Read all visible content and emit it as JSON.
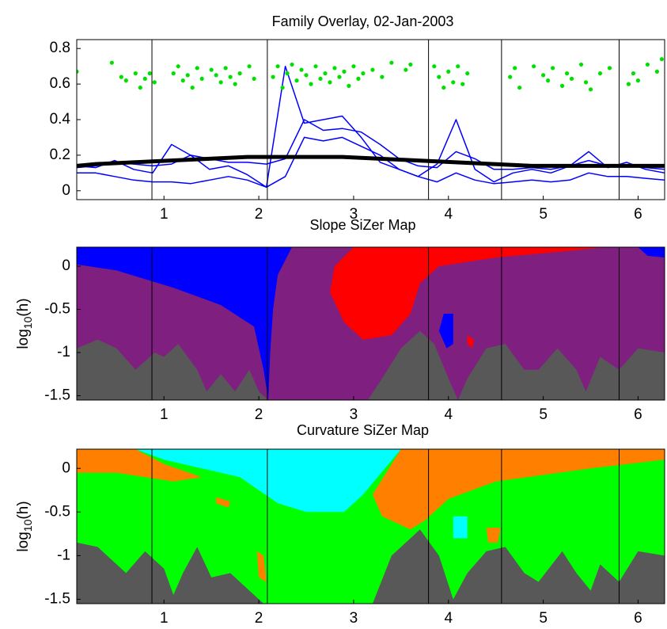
{
  "chart_data": [
    {
      "type": "line",
      "title": "Family Overlay, 02-Jan-2003",
      "xlim": [
        0.08,
        6.28
      ],
      "xticks": [
        1,
        2,
        3,
        4,
        5,
        6
      ],
      "ylim": [
        -0.05,
        0.85
      ],
      "yticks": [
        0,
        0.2,
        0.4,
        0.6,
        0.8
      ],
      "vlines": [
        0.873,
        2.09,
        3.79,
        4.56,
        5.8
      ],
      "x": [
        0.08,
        0.28,
        0.48,
        0.68,
        0.88,
        1.08,
        1.28,
        1.48,
        1.68,
        1.88,
        2.08,
        2.28,
        2.48,
        2.68,
        2.88,
        3.08,
        3.28,
        3.48,
        3.68,
        3.88,
        4.08,
        4.28,
        4.48,
        4.68,
        4.88,
        5.08,
        5.28,
        5.48,
        5.68,
        5.88,
        6.08,
        6.28
      ],
      "series": [
        {
          "color": "#0000ff",
          "values": [
            0.14,
            0.13,
            0.17,
            0.12,
            0.1,
            0.26,
            0.2,
            0.12,
            0.14,
            0.09,
            0.02,
            0.7,
            0.38,
            0.4,
            0.42,
            0.3,
            0.16,
            0.12,
            0.08,
            0.15,
            0.4,
            0.12,
            0.05,
            0.1,
            0.12,
            0.1,
            0.14,
            0.22,
            0.13,
            0.16,
            0.12,
            0.1
          ]
        },
        {
          "color": "#0000ff",
          "values": [
            0.13,
            0.14,
            0.16,
            0.15,
            0.14,
            0.15,
            0.2,
            0.18,
            0.16,
            0.16,
            0.15,
            0.18,
            0.4,
            0.34,
            0.35,
            0.33,
            0.26,
            0.18,
            0.14,
            0.13,
            0.22,
            0.18,
            0.12,
            0.12,
            0.13,
            0.12,
            0.14,
            0.17,
            0.14,
            0.14,
            0.13,
            0.12
          ]
        },
        {
          "color": "#0000ff",
          "values": [
            0.1,
            0.1,
            0.08,
            0.06,
            0.05,
            0.05,
            0.04,
            0.06,
            0.08,
            0.06,
            0.02,
            0.08,
            0.3,
            0.28,
            0.3,
            0.25,
            0.2,
            0.12,
            0.08,
            0.05,
            0.1,
            0.06,
            0.04,
            0.05,
            0.06,
            0.05,
            0.06,
            0.1,
            0.08,
            0.08,
            0.07,
            0.06
          ]
        },
        {
          "color": "#000000",
          "values": [
            0.14,
            0.15,
            0.155,
            0.16,
            0.165,
            0.17,
            0.175,
            0.18,
            0.185,
            0.19,
            0.19,
            0.19,
            0.19,
            0.19,
            0.19,
            0.185,
            0.18,
            0.175,
            0.17,
            0.165,
            0.16,
            0.155,
            0.15,
            0.145,
            0.14,
            0.14,
            0.14,
            0.14,
            0.14,
            0.14,
            0.14,
            0.14
          ]
        },
        {
          "type": "scatter",
          "color": "#00e000",
          "x": [
            0.08,
            0.45,
            0.55,
            0.6,
            0.7,
            0.75,
            0.8,
            0.85,
            0.9,
            1.1,
            1.15,
            1.2,
            1.25,
            1.3,
            1.35,
            1.4,
            1.5,
            1.55,
            1.6,
            1.65,
            1.7,
            1.75,
            1.8,
            1.9,
            1.95,
            2.15,
            2.2,
            2.25,
            2.3,
            2.35,
            2.4,
            2.45,
            2.5,
            2.55,
            2.6,
            2.65,
            2.7,
            2.75,
            2.8,
            2.85,
            2.9,
            2.95,
            3.0,
            3.05,
            3.1,
            3.2,
            3.3,
            3.4,
            3.55,
            3.6,
            3.85,
            3.9,
            3.95,
            4.0,
            4.05,
            4.1,
            4.15,
            4.2,
            4.65,
            4.7,
            4.75,
            4.9,
            5.0,
            5.05,
            5.1,
            5.2,
            5.25,
            5.3,
            5.4,
            5.45,
            5.5,
            5.6,
            5.7,
            5.9,
            5.95,
            6.0,
            6.1,
            6.2,
            6.25
          ],
          "values": [
            0.67,
            0.72,
            0.64,
            0.62,
            0.66,
            0.58,
            0.63,
            0.66,
            0.61,
            0.66,
            0.7,
            0.62,
            0.65,
            0.58,
            0.69,
            0.63,
            0.68,
            0.65,
            0.61,
            0.69,
            0.64,
            0.6,
            0.66,
            0.7,
            0.63,
            0.64,
            0.7,
            0.58,
            0.66,
            0.71,
            0.62,
            0.68,
            0.65,
            0.6,
            0.7,
            0.63,
            0.66,
            0.61,
            0.69,
            0.64,
            0.67,
            0.59,
            0.7,
            0.63,
            0.66,
            0.68,
            0.64,
            0.72,
            0.68,
            0.71,
            0.7,
            0.64,
            0.58,
            0.67,
            0.61,
            0.7,
            0.6,
            0.66,
            0.64,
            0.69,
            0.58,
            0.7,
            0.65,
            0.62,
            0.69,
            0.59,
            0.66,
            0.63,
            0.71,
            0.61,
            0.57,
            0.66,
            0.69,
            0.6,
            0.66,
            0.62,
            0.71,
            0.67,
            0.74
          ]
        }
      ]
    },
    {
      "type": "heatmap",
      "title": "Slope SiZer Map",
      "ylabel": [
        "log",
        "10",
        "(h)"
      ],
      "xlim": [
        0.08,
        6.28
      ],
      "xticks": [
        1,
        2,
        3,
        4,
        5,
        6
      ],
      "ylim": [
        -1.55,
        0.22
      ],
      "yticks": [
        -1.5,
        -1,
        -0.5,
        0
      ],
      "vlines": [
        0.873,
        2.09,
        3.79,
        4.56,
        5.8
      ],
      "background": "#7f1f80",
      "regions": [
        {
          "color": "#0000ff",
          "x": [
            0.08,
            2.35,
            2.2,
            2.15,
            2.12,
            2.1,
            2.05,
            1.95,
            1.6,
            1.1,
            0.5,
            0.08
          ],
          "y": [
            0.22,
            0.22,
            -0.1,
            -0.5,
            -1.0,
            -1.55,
            -1.2,
            -0.7,
            -0.45,
            -0.25,
            -0.05,
            0.02
          ]
        },
        {
          "color": "#ff0000",
          "x": [
            3.0,
            5.65,
            5.3,
            4.5,
            3.9,
            3.7,
            3.6,
            3.4,
            3.1,
            2.9,
            2.75,
            2.8
          ],
          "y": [
            0.22,
            0.22,
            0.18,
            0.1,
            0.0,
            -0.2,
            -0.55,
            -0.8,
            -0.85,
            -0.65,
            -0.3,
            0.0
          ]
        },
        {
          "color": "#0000ff",
          "x": [
            3.95,
            4.05,
            4.05,
            3.98,
            3.9
          ],
          "y": [
            -0.55,
            -0.55,
            -0.9,
            -0.95,
            -0.75
          ]
        },
        {
          "color": "#ff0000",
          "x": [
            4.2,
            4.27,
            4.25,
            4.2
          ],
          "y": [
            -0.8,
            -0.85,
            -0.95,
            -0.9
          ]
        },
        {
          "color": "#0000ff",
          "x": [
            6.0,
            6.28,
            6.28,
            6.1
          ],
          "y": [
            0.22,
            0.22,
            0.1,
            0.12
          ]
        },
        {
          "color": "#585858",
          "x": [
            0.08,
            0.3,
            0.5,
            0.7,
            0.9,
            1.0,
            1.15,
            1.35,
            1.45,
            1.6,
            1.75,
            1.9,
            2.0,
            2.1,
            3.15,
            3.3,
            3.5,
            3.7,
            3.85,
            4.0,
            4.1,
            4.2,
            4.4,
            4.6,
            4.8,
            4.95,
            5.15,
            5.35,
            5.45,
            5.6,
            5.8,
            6.0,
            6.28,
            6.28,
            0.08
          ],
          "y": [
            -0.95,
            -0.85,
            -0.95,
            -1.2,
            -1.0,
            -1.05,
            -0.9,
            -1.2,
            -1.45,
            -1.25,
            -1.45,
            -1.2,
            -1.45,
            -1.55,
            -1.55,
            -1.3,
            -0.95,
            -0.75,
            -0.9,
            -1.3,
            -1.55,
            -1.3,
            -0.95,
            -0.9,
            -1.2,
            -1.2,
            -0.95,
            -1.2,
            -1.45,
            -1.05,
            -1.2,
            -0.95,
            -1.0,
            -1.55,
            -1.55
          ]
        }
      ]
    },
    {
      "type": "heatmap",
      "title": "Curvature SiZer Map",
      "ylabel": [
        "log",
        "10",
        "(h)"
      ],
      "xlim": [
        0.08,
        6.28
      ],
      "xticks": [
        1,
        2,
        3,
        4,
        5,
        6
      ],
      "ylim": [
        -1.55,
        0.22
      ],
      "yticks": [
        -1.5,
        -1,
        -0.5,
        0
      ],
      "vlines": [
        0.873,
        2.09,
        3.79,
        4.56,
        5.8
      ],
      "background": "#00ff00",
      "regions": [
        {
          "color": "#ff8000",
          "x": [
            0.08,
            0.7,
            1.0,
            1.4,
            1.1,
            0.5,
            0.08
          ],
          "y": [
            0.22,
            0.22,
            0.05,
            -0.1,
            -0.15,
            -0.05,
            -0.05
          ]
        },
        {
          "color": "#00ffff",
          "x": [
            0.7,
            3.5,
            3.1,
            2.9,
            2.5,
            2.2,
            1.8,
            1.0
          ],
          "y": [
            0.22,
            0.22,
            -0.3,
            -0.5,
            -0.5,
            -0.4,
            -0.1,
            0.1
          ]
        },
        {
          "color": "#ff8000",
          "x": [
            3.5,
            6.28,
            6.28,
            5.5,
            4.5,
            4.0,
            3.75,
            3.6,
            3.3,
            3.2
          ],
          "y": [
            0.22,
            0.22,
            0.1,
            0.0,
            -0.15,
            -0.35,
            -0.6,
            -0.7,
            -0.55,
            -0.3
          ]
        },
        {
          "color": "#00ffff",
          "x": [
            4.05,
            4.2,
            4.2,
            4.05
          ],
          "y": [
            -0.55,
            -0.55,
            -0.8,
            -0.8
          ]
        },
        {
          "color": "#ff8000",
          "x": [
            1.55,
            1.7,
            1.68,
            1.55
          ],
          "y": [
            -0.33,
            -0.38,
            -0.45,
            -0.4
          ]
        },
        {
          "color": "#ff8000",
          "x": [
            1.98,
            2.05,
            2.08,
            2.0
          ],
          "y": [
            -0.95,
            -1.0,
            -1.3,
            -1.25
          ]
        },
        {
          "color": "#ff8000",
          "x": [
            4.4,
            4.55,
            4.52,
            4.42
          ],
          "y": [
            -0.68,
            -0.68,
            -0.85,
            -0.85
          ]
        },
        {
          "color": "#585858",
          "x": [
            0.08,
            0.3,
            0.6,
            0.8,
            1.0,
            1.1,
            1.2,
            1.35,
            1.5,
            1.7,
            1.9,
            2.05,
            3.2,
            3.4,
            3.7,
            3.9,
            4.05,
            4.2,
            4.4,
            4.6,
            4.8,
            4.95,
            5.2,
            5.35,
            5.5,
            5.6,
            5.8,
            6.0,
            6.28,
            6.28,
            0.08
          ],
          "y": [
            -0.85,
            -0.9,
            -1.2,
            -0.95,
            -1.15,
            -1.45,
            -1.2,
            -0.9,
            -1.25,
            -1.2,
            -1.4,
            -1.55,
            -1.55,
            -1.0,
            -0.7,
            -1.0,
            -1.5,
            -1.2,
            -0.95,
            -0.9,
            -1.2,
            -1.3,
            -0.95,
            -1.2,
            -1.4,
            -1.1,
            -1.3,
            -0.95,
            -1.0,
            -1.55,
            -1.55
          ]
        }
      ]
    }
  ]
}
